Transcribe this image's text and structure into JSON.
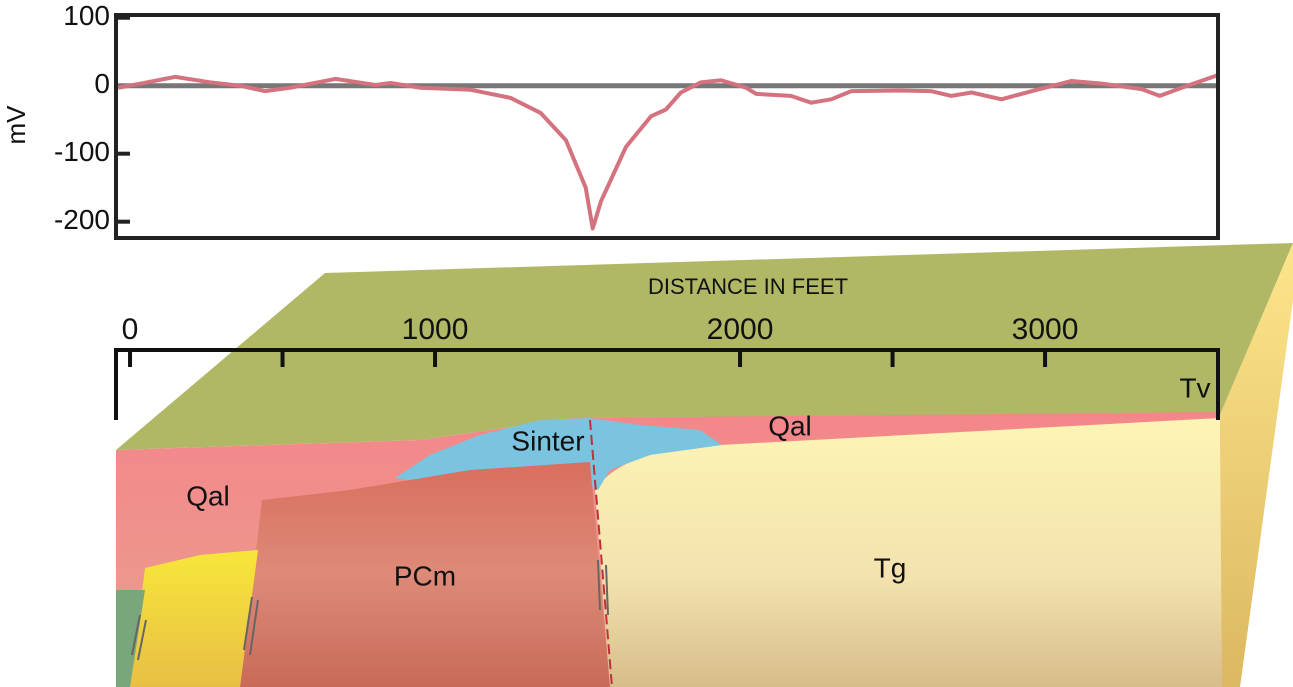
{
  "chart_data": {
    "type": "line",
    "ylabel": "mV",
    "xlabel": "DISTANCE IN FEET",
    "x": [
      -39,
      33,
      148,
      263,
      361,
      443,
      525,
      673,
      805,
      854,
      952,
      1117,
      1248,
      1346,
      1429,
      1494,
      1517,
      1544,
      1626,
      1708,
      1757,
      1806,
      1872,
      1938,
      2020,
      2053,
      2167,
      2233,
      2299,
      2365,
      2529,
      2627,
      2693,
      2759,
      2857,
      2956,
      3087,
      3186,
      3317,
      3376,
      3448,
      3563
    ],
    "series": [
      {
        "color": "#d4737f",
        "values": [
          -3,
          3,
          13,
          5,
          0,
          -8,
          -3,
          10,
          1,
          4,
          -3,
          -6,
          -18,
          -40,
          -80,
          -150,
          -210,
          -170,
          -90,
          -45,
          -35,
          -10,
          5,
          8,
          -3,
          -12,
          -15,
          -25,
          -20,
          -8,
          -7,
          -8,
          -15,
          -10,
          -20,
          -8,
          7,
          3,
          -5,
          -15,
          -3,
          15
        ]
      }
    ],
    "xlim": [
      -46,
      3567
    ],
    "xticks": [
      0,
      1000,
      2000,
      3000
    ],
    "minor_xticks": [
      500,
      2500
    ],
    "ylim": [
      -224,
      104
    ],
    "yticks": [
      100,
      0,
      -100,
      -200
    ],
    "zero_line": true
  },
  "units": [
    "Qal",
    "Sinter",
    "Qal",
    "PCm",
    "Tg",
    "Tv"
  ]
}
